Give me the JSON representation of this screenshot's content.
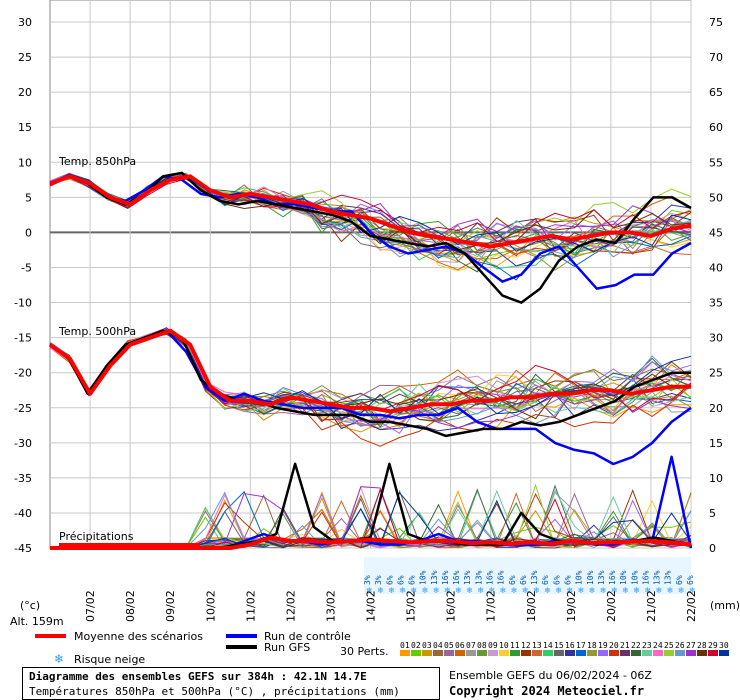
{
  "chart_data": {
    "type": "line",
    "x_dates": [
      "07/02",
      "08/02",
      "09/02",
      "10/02",
      "11/02",
      "12/02",
      "13/02",
      "14/02",
      "15/02",
      "16/02",
      "17/02",
      "18/02",
      "19/02",
      "20/02",
      "21/02",
      "22/02"
    ],
    "left_axis": {
      "ticks": [
        "30",
        "25",
        "20",
        "15",
        "10",
        "5",
        "0",
        "-5",
        "-10",
        "-15",
        "-20",
        "-25",
        "-30",
        "-35",
        "-40",
        "-45"
      ],
      "unit": "(°c)"
    },
    "right_axis": {
      "ticks": [
        "75",
        "70",
        "65",
        "60",
        "55",
        "50",
        "45",
        "40",
        "35",
        "30",
        "25",
        "20",
        "15",
        "10",
        "5",
        "0"
      ],
      "unit": "(mm)"
    },
    "labels": {
      "t850": "Temp. 850hPa",
      "t500": "Temp. 500hPa",
      "precip": "Précipitations",
      "alt": "Alt. 159m"
    },
    "snow_risk": [
      "3%",
      "3%",
      "6%",
      "6%",
      "6%",
      "10%",
      "13%",
      "16%",
      "16%",
      "13%",
      "13%",
      "16%",
      "16%",
      "6%",
      "6%",
      "13%",
      "6%",
      "6%",
      "6%",
      "10%",
      "10%",
      "13%",
      "16%",
      "10%",
      "10%",
      "16%",
      "13%",
      "13%",
      "6%",
      "6%"
    ],
    "series": [
      {
        "name": "Moyenne des scénarios",
        "color": "#ff0000",
        "t850": [
          7,
          8,
          7,
          5,
          4,
          6,
          7.5,
          8,
          6,
          5,
          5.5,
          5,
          4.5,
          4,
          3,
          2.5,
          2,
          1,
          0,
          -0.5,
          -1,
          -1.5,
          -2,
          -1.5,
          -1,
          -0.5,
          -1,
          -0.5,
          0,
          0,
          -0.5,
          0.5,
          1
        ],
        "t500": [
          -16,
          -18,
          -23,
          -19,
          -16,
          -15,
          -14,
          -16,
          -22,
          -24,
          -24,
          -24.5,
          -23.5,
          -24,
          -24.5,
          -25,
          -25,
          -25.5,
          -25,
          -24.5,
          -24.5,
          -24,
          -24,
          -23.5,
          -23.5,
          -23,
          -23,
          -22.5,
          -22.5,
          -23,
          -22.5,
          -22,
          -22
        ],
        "precip": [
          0,
          0,
          0,
          0,
          0,
          0,
          0,
          0,
          0,
          0,
          0.5,
          1.5,
          1,
          1,
          0.8,
          1,
          1.2,
          1,
          0.8,
          1,
          1,
          0.7,
          0.8,
          0.6,
          0.8,
          0.6,
          1,
          0.7,
          0.8,
          0.9,
          1,
          0.8,
          0.5
        ]
      },
      {
        "name": "Run de contrôle",
        "color": "#0000ff",
        "t850": [
          7,
          8,
          7,
          5,
          4.5,
          6,
          8,
          7.5,
          5.5,
          5,
          5.5,
          5,
          4,
          4,
          3.5,
          3,
          3,
          0,
          -2,
          -3,
          -2.5,
          -2,
          -3,
          -5,
          -7,
          -6,
          -3,
          -2,
          -5,
          -8,
          -7.5,
          -6,
          -6,
          -3,
          -1.5
        ],
        "t500": [
          -16,
          -18,
          -23,
          -19,
          -16,
          -15,
          -14,
          -17,
          -22,
          -24,
          -23,
          -24,
          -24.5,
          -25,
          -25,
          -25,
          -26,
          -26,
          -26.5,
          -26,
          -26,
          -25,
          -27,
          -28,
          -28,
          -28,
          -30,
          -31,
          -31.5,
          -33,
          -32,
          -30,
          -27,
          -25
        ],
        "precip": [
          0,
          0,
          0,
          0,
          0,
          0,
          0,
          0,
          0,
          0,
          1,
          2,
          1,
          1,
          0.5,
          1,
          1,
          0.5,
          0.5,
          1,
          2,
          1,
          1,
          0.5,
          0.5,
          0.5,
          1,
          1,
          0.5,
          0.5,
          1,
          1,
          13,
          0
        ]
      },
      {
        "name": "Run GFS",
        "color": "#000000",
        "t850": [
          7,
          8,
          7,
          5,
          4,
          5.5,
          8,
          8.5,
          6,
          4.5,
          4,
          4.5,
          4,
          3.5,
          3,
          2.5,
          1.5,
          -0.5,
          -1,
          -1.5,
          -2,
          -1.5,
          -3,
          -6,
          -9,
          -10,
          -8,
          -4,
          -2,
          -1,
          -1.5,
          2,
          5,
          5,
          3.5
        ],
        "t500": [
          -16,
          -18,
          -23,
          -19,
          -16,
          -15,
          -14,
          -15,
          -21,
          -23,
          -24,
          -24,
          -25,
          -25.5,
          -26,
          -26,
          -26,
          -27,
          -27,
          -27.5,
          -28,
          -29,
          -28.5,
          -28,
          -28,
          -27,
          -27.5,
          -27,
          -26,
          -25,
          -24,
          -22,
          -21,
          -20,
          -20
        ],
        "precip": [
          0,
          0,
          0,
          0,
          0,
          0,
          0,
          0,
          0,
          0,
          0.5,
          1,
          2,
          12,
          3,
          1,
          1,
          1.5,
          12,
          2,
          1,
          1,
          0.5,
          0.5,
          0.5,
          5,
          2,
          1,
          1,
          0.5,
          1,
          1,
          1.5,
          1,
          0.5
        ]
      }
    ],
    "legend": {
      "mean": "Moyenne des scénarios",
      "control": "Run de contrôle",
      "gfs": "Run GFS",
      "snow": "Risque neige"
    },
    "perts": {
      "label": "30 Perts.",
      "numbers": [
        "01",
        "02",
        "03",
        "04",
        "05",
        "06",
        "07",
        "08",
        "09",
        "10",
        "11",
        "12",
        "13",
        "14",
        "15",
        "16",
        "17",
        "18",
        "19",
        "20",
        "21",
        "22",
        "23",
        "24",
        "25",
        "26",
        "27",
        "28",
        "29",
        "30"
      ],
      "colors": [
        "#ff9900",
        "#66cc00",
        "#cc9900",
        "#996633",
        "#996699",
        "#cc6600",
        "#999999",
        "#669933",
        "#cc99cc",
        "#ffcc33",
        "#339933",
        "#993300",
        "#cc6633",
        "#33cc66",
        "#666666",
        "#333399",
        "#0066cc",
        "#999933",
        "#9966ff",
        "#cc3300",
        "#663366",
        "#336633",
        "#66cc99",
        "#ff66cc",
        "#99cc33",
        "#6699cc",
        "#9933cc",
        "#663300",
        "#cc0033",
        "#003399"
      ]
    }
  },
  "footer": {
    "title": "Diagramme des ensembles GEFS sur 384h : 42.1N 14.7E",
    "subtitle": "Températures 850hPa et 500hPa (°C) , précipitations (mm)",
    "run": "Ensemble GEFS du 06/02/2024 - 06Z",
    "copyright": "Copyright 2024 Meteociel.fr"
  }
}
